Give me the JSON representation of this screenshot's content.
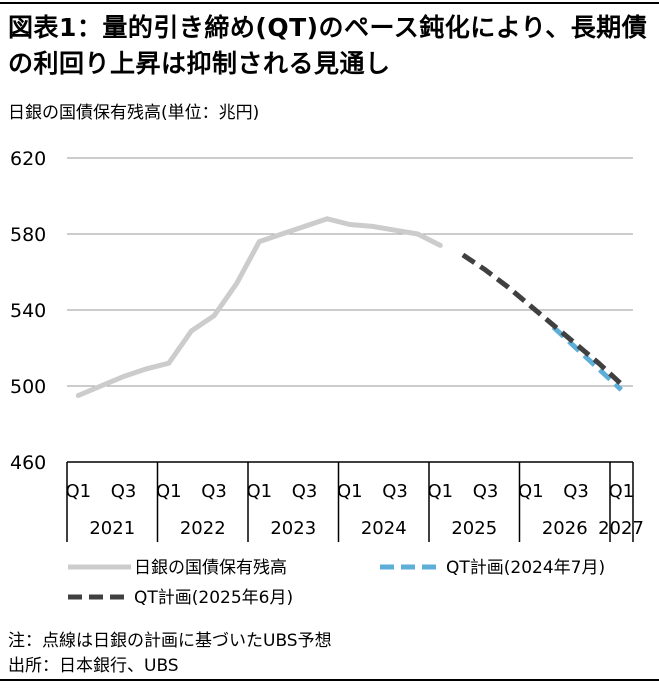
{
  "title": "図表1：量的引き締め(QT)のペース鈍化により、長期債の利回り上昇は抑制される見通し",
  "subtitle": "日銀の国債保有残高(単位：兆円)",
  "note": "注：点線は日銀の計画に基づいたUBS予想",
  "source": "出所：日本銀行、UBS",
  "chart_data": {
    "type": "line",
    "ylim": [
      460,
      620
    ],
    "yticks": [
      460,
      500,
      540,
      580,
      620
    ],
    "quarters_per_year": 4,
    "x_start": "2021Q1",
    "quarter_tick_labels": [
      "Q1",
      "Q3"
    ],
    "year_labels": [
      "2021",
      "2022",
      "2023",
      "2024",
      "2025",
      "2026",
      "2027"
    ],
    "series": [
      {
        "name": "日銀の国債保有残高",
        "color": "#cccccc",
        "dash": "solid",
        "x": [
          "2021Q1",
          "2021Q2",
          "2021Q3",
          "2021Q4",
          "2022Q1",
          "2022Q2",
          "2022Q3",
          "2022Q4",
          "2023Q1",
          "2023Q2",
          "2023Q3",
          "2023Q4",
          "2024Q1",
          "2024Q2",
          "2024Q3",
          "2024Q4",
          "2025Q1"
        ],
        "values": [
          495,
          500,
          505,
          509,
          512,
          529,
          537,
          554,
          576,
          580,
          584,
          588,
          585,
          584,
          582,
          580,
          574
        ]
      },
      {
        "name": "QT計画(2024年7月)",
        "color": "#5eaed8",
        "dash": "dashed",
        "x": [
          "2026Q2",
          "2026Q3",
          "2026Q4",
          "2027Q1"
        ],
        "values": [
          531,
          520,
          509,
          498
        ]
      },
      {
        "name": "QT計画(2025年6月)",
        "color": "#404040",
        "dash": "dashed",
        "x": [
          "2025Q2",
          "2025Q3",
          "2025Q4",
          "2026Q1",
          "2026Q2",
          "2026Q3",
          "2026Q4",
          "2027Q1"
        ],
        "values": [
          569,
          561,
          552,
          542,
          532,
          522,
          512,
          501
        ]
      }
    ],
    "legend_position": "bottom"
  }
}
